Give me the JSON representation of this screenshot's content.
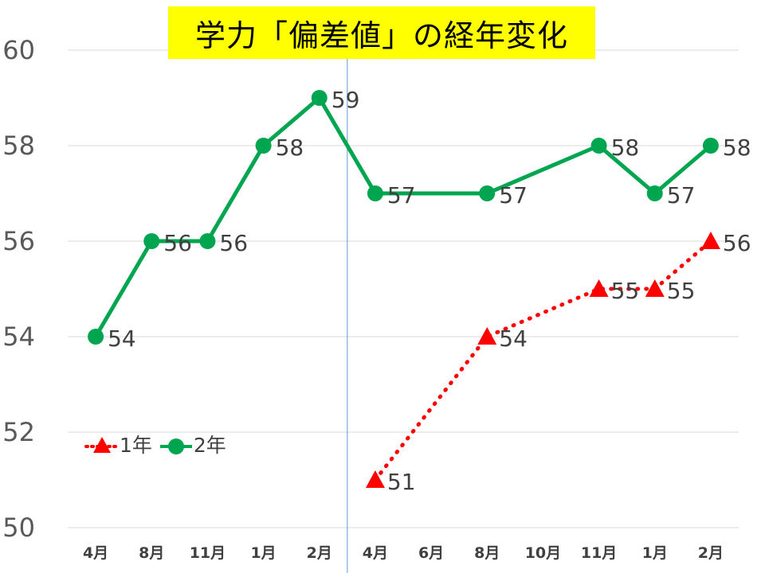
{
  "chart_data": {
    "type": "line",
    "title": "学力「偏差値」の経年変化",
    "categories": [
      "4月",
      "8月",
      "11月",
      "1月",
      "2月",
      "4月",
      "6月",
      "8月",
      "10月",
      "11月",
      "1月",
      "2月"
    ],
    "ylim": [
      50,
      60
    ],
    "yticks": [
      50,
      52,
      54,
      56,
      58,
      60
    ],
    "grid": true,
    "legend_position": "bottom-left",
    "series": [
      {
        "name": "1年",
        "color": "#ff0000",
        "line_style": "dotted",
        "marker": "triangle",
        "values": [
          null,
          null,
          null,
          null,
          null,
          51,
          null,
          54,
          null,
          55,
          55,
          56
        ]
      },
      {
        "name": "2年",
        "color": "#00a550",
        "line_style": "solid",
        "marker": "circle",
        "values": [
          54,
          56,
          56,
          58,
          59,
          57,
          null,
          57,
          null,
          58,
          57,
          58
        ]
      }
    ],
    "data_labels": true,
    "divider_after_category_index": 4,
    "divider_color": "#5b9bd5"
  }
}
